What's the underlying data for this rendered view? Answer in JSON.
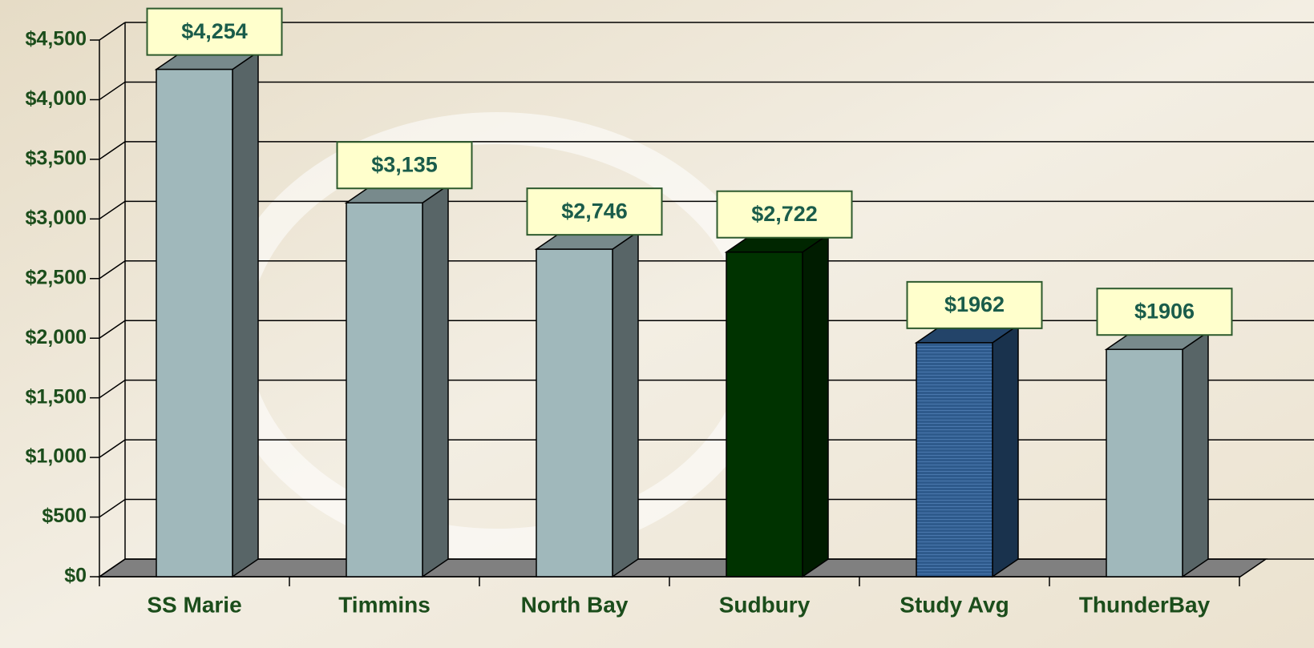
{
  "chart_data": {
    "type": "bar3d",
    "categories": [
      "SS Marie",
      "Timmins",
      "North Bay",
      "Sudbury",
      "Study Avg",
      "ThunderBay"
    ],
    "values": [
      4254,
      3135,
      2746,
      2722,
      1962,
      1906
    ],
    "value_labels": [
      "$4,254",
      "$3,135",
      "$2,746",
      "$2,722",
      "$1962",
      "$1906"
    ],
    "colors": [
      "#a0b8bb",
      "#a0b8bb",
      "#a0b8bb",
      "#003300",
      "#2e5a8c",
      "#a0b8bb"
    ],
    "ylim": [
      0,
      4500
    ],
    "yticks": [
      {
        "value": 0,
        "label": "$0"
      },
      {
        "value": 500,
        "label": "$500"
      },
      {
        "value": 1000,
        "label": "$1,000"
      },
      {
        "value": 1500,
        "label": "$1,500"
      },
      {
        "value": 2000,
        "label": "$2,000"
      },
      {
        "value": 2500,
        "label": "$2,500"
      },
      {
        "value": 3000,
        "label": "$3,000"
      },
      {
        "value": 3500,
        "label": "$3,500"
      },
      {
        "value": 4000,
        "label": "$4,000"
      },
      {
        "value": 4500,
        "label": "$4,500"
      }
    ],
    "grid": true
  }
}
